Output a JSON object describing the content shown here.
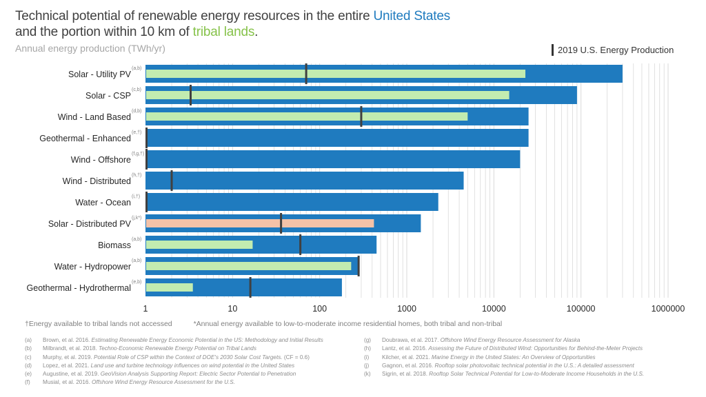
{
  "header": {
    "title_line1_pre": "Technical potential of renewable energy resources in the entire ",
    "title_line1_hl": "United States",
    "title_line2_pre": "and the portion within  10 km of ",
    "title_line2_hl": "tribal lands",
    "title_line2_post": ".",
    "subtitle": "Annual energy production (TWh/yr)",
    "legend_label": "2019 U.S. Energy Production"
  },
  "colors": {
    "us": "#1f7bbf",
    "tribal": "#c2ecb0",
    "low_income": "#f4c2a8",
    "marker": "#404040",
    "grid": "#d9d9d9"
  },
  "chart_data": {
    "type": "bar",
    "orientation": "horizontal",
    "xscale": "log",
    "xlim": [
      1,
      1000000
    ],
    "xticks": [
      "1",
      "10",
      "100",
      "1000",
      "10000",
      "100000",
      "1000000"
    ],
    "grid": true,
    "legend_position": "top-right",
    "categories": [
      {
        "label": "Solar - Utility PV",
        "sup": "(a,b)"
      },
      {
        "label": "Solar - CSP",
        "sup": "(c,b)"
      },
      {
        "label": "Wind - Land Based",
        "sup": "(d,b)"
      },
      {
        "label": "Geothermal - Enhanced",
        "sup": "(e,†)"
      },
      {
        "label": "Wind - Offshore",
        "sup": "(f,g,†)"
      },
      {
        "label": "Wind - Distributed",
        "sup": "(h,†)"
      },
      {
        "label": "Water - Ocean",
        "sup": "(i,†)"
      },
      {
        "label": "Solar - Distributed PV",
        "sup": "(j,k*)"
      },
      {
        "label": "Biomass",
        "sup": "(a,b)"
      },
      {
        "label": "Water - Hydropower",
        "sup": "(a,b)"
      },
      {
        "label": "Geothermal - Hydrothermal",
        "sup": "(e,b)"
      }
    ],
    "series": [
      {
        "name": "United States",
        "values": [
          300000,
          90000,
          25000,
          25000,
          20000,
          4500,
          2300,
          1450,
          450,
          280,
          180
        ]
      },
      {
        "name": "Tribal lands",
        "values": [
          23000,
          15000,
          5000,
          null,
          null,
          null,
          null,
          420,
          17,
          230,
          3.5
        ]
      },
      {
        "name": "2019 U.S. Energy Production",
        "values": [
          70,
          3.3,
          300,
          1,
          1,
          2,
          1,
          36,
          60,
          280,
          16
        ]
      }
    ]
  },
  "footnote": {
    "dagger": "†Energy available to tribal lands not accessed",
    "star": "*Annual energy available to low-to-moderate  income residential homes, both tribal and non-tribal"
  },
  "references": {
    "left": [
      {
        "tag": "(a)",
        "plain": "Brown, et al. 2016. ",
        "ital": "Estimating Renewable Energy Economic Potential in the US: Methodology and Initial Results",
        "post": ""
      },
      {
        "tag": "(b)",
        "plain": "Milbrandt, et al. 2018. ",
        "ital": "Techno-Economic  Renewable Energy Potential on Tribal Lands",
        "post": ""
      },
      {
        "tag": "(c)",
        "plain": "Murphy, et al. 2019. ",
        "ital": "Potential Role of CSP within the Context of DOE's 2030 Solar Cost Targets.",
        "post": " (CF = 0.6)"
      },
      {
        "tag": "(d)",
        "plain": "Lopez, et al. 2021. ",
        "ital": "Land use and turbine technology influences on wind potential in the United States",
        "post": ""
      },
      {
        "tag": "(e)",
        "plain": "Augustine, et al. 2019. ",
        "ital": "GeoVision Analysis Supporting Report: Electric Sector Potential to Penetration",
        "post": ""
      },
      {
        "tag": "(f)",
        "plain": "Musial, et al. 2016. ",
        "ital": "Offshore Wind Energy Resource Assessment  for the U.S.",
        "post": ""
      }
    ],
    "right": [
      {
        "tag": "(g)",
        "plain": "Doubrawa, et al. 2017. ",
        "ital": "Offshore Wind Energy Resource Assessment  for Alaska",
        "post": ""
      },
      {
        "tag": "(h)",
        "plain": "Lantz, et al. 2016. ",
        "ital": "Assessing  the Future of Distributed Wind: Opportunities for Behind-the-Meter Projects",
        "post": ""
      },
      {
        "tag": "(i)",
        "plain": "Kilcher, et al. 2021. ",
        "ital": "Marine Energy in the United States: An Overview of Opportunities",
        "post": ""
      },
      {
        "tag": "(j)",
        "plain": "Gagnon, et al. 2016. ",
        "ital": "Rooftop solar photovoltaic technical potential in the U.S.: A detailed assessment",
        "post": ""
      },
      {
        "tag": "(k)",
        "plain": "Sigrin, et al. 2018. ",
        "ital": "Rooftop Solar Technical Potential for Low-to-Moderate Income Households in the U.S.",
        "post": ""
      }
    ]
  }
}
